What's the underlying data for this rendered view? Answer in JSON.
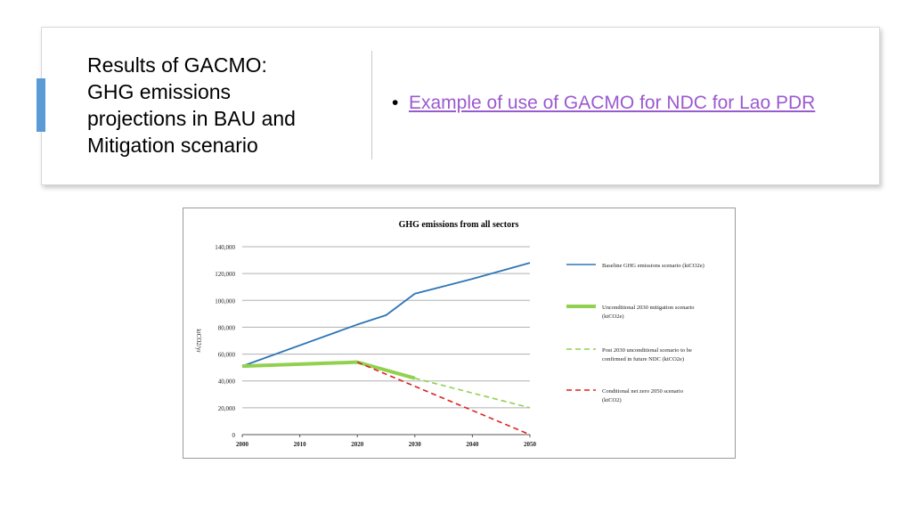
{
  "slide": {
    "title_lines": [
      "Results of GACMO:",
      "GHG emissions",
      "projections in BAU and",
      "Mitigation scenario"
    ],
    "bullet_link": "Example of use of GACMO for NDC for Lao PDR",
    "accent_color": "#5b9bd5",
    "link_color": "#9b59d0"
  },
  "chart_data": {
    "type": "line",
    "title": "GHG emissions  from all sectors",
    "xlabel": "",
    "ylabel": "ktCO2/yr",
    "xlim": [
      2000,
      2050
    ],
    "ylim": [
      0,
      140000
    ],
    "x_ticks": [
      "2000",
      "2010",
      "2020",
      "2030",
      "2040",
      "2050"
    ],
    "y_ticks": [
      "0",
      "20,000",
      "40,000",
      "60,000",
      "80,000",
      "100,000",
      "120,000",
      "140,000"
    ],
    "grid": "horizontal",
    "legend_placement": "right",
    "series": [
      {
        "name": "Baseline GHG emissions scenario (ktCO2e)",
        "color": "#2e75b6",
        "style": "solid",
        "width": "thin",
        "x": [
          2000,
          2020,
          2025,
          2030,
          2040,
          2050
        ],
        "y": [
          51000,
          82000,
          89000,
          105000,
          116000,
          128000
        ]
      },
      {
        "name": "Unconditional 2030 mitigation scenario (ktCO2e)",
        "color": "#92d050",
        "style": "solid",
        "width": "thick",
        "x": [
          2000,
          2020,
          2030
        ],
        "y": [
          51000,
          54000,
          42000
        ]
      },
      {
        "name": "Post 2030 unconditional scenario to be confirmed in future NDC (ktCO2e)",
        "color": "#92d050",
        "style": "dashed",
        "width": "thin",
        "x": [
          2030,
          2050
        ],
        "y": [
          42000,
          20000
        ]
      },
      {
        "name": "Conditional net zero 2050 scenario (ktCO2)",
        "color": "#e02020",
        "style": "dashed",
        "width": "thin",
        "x": [
          2020,
          2050
        ],
        "y": [
          54000,
          0
        ]
      }
    ]
  }
}
